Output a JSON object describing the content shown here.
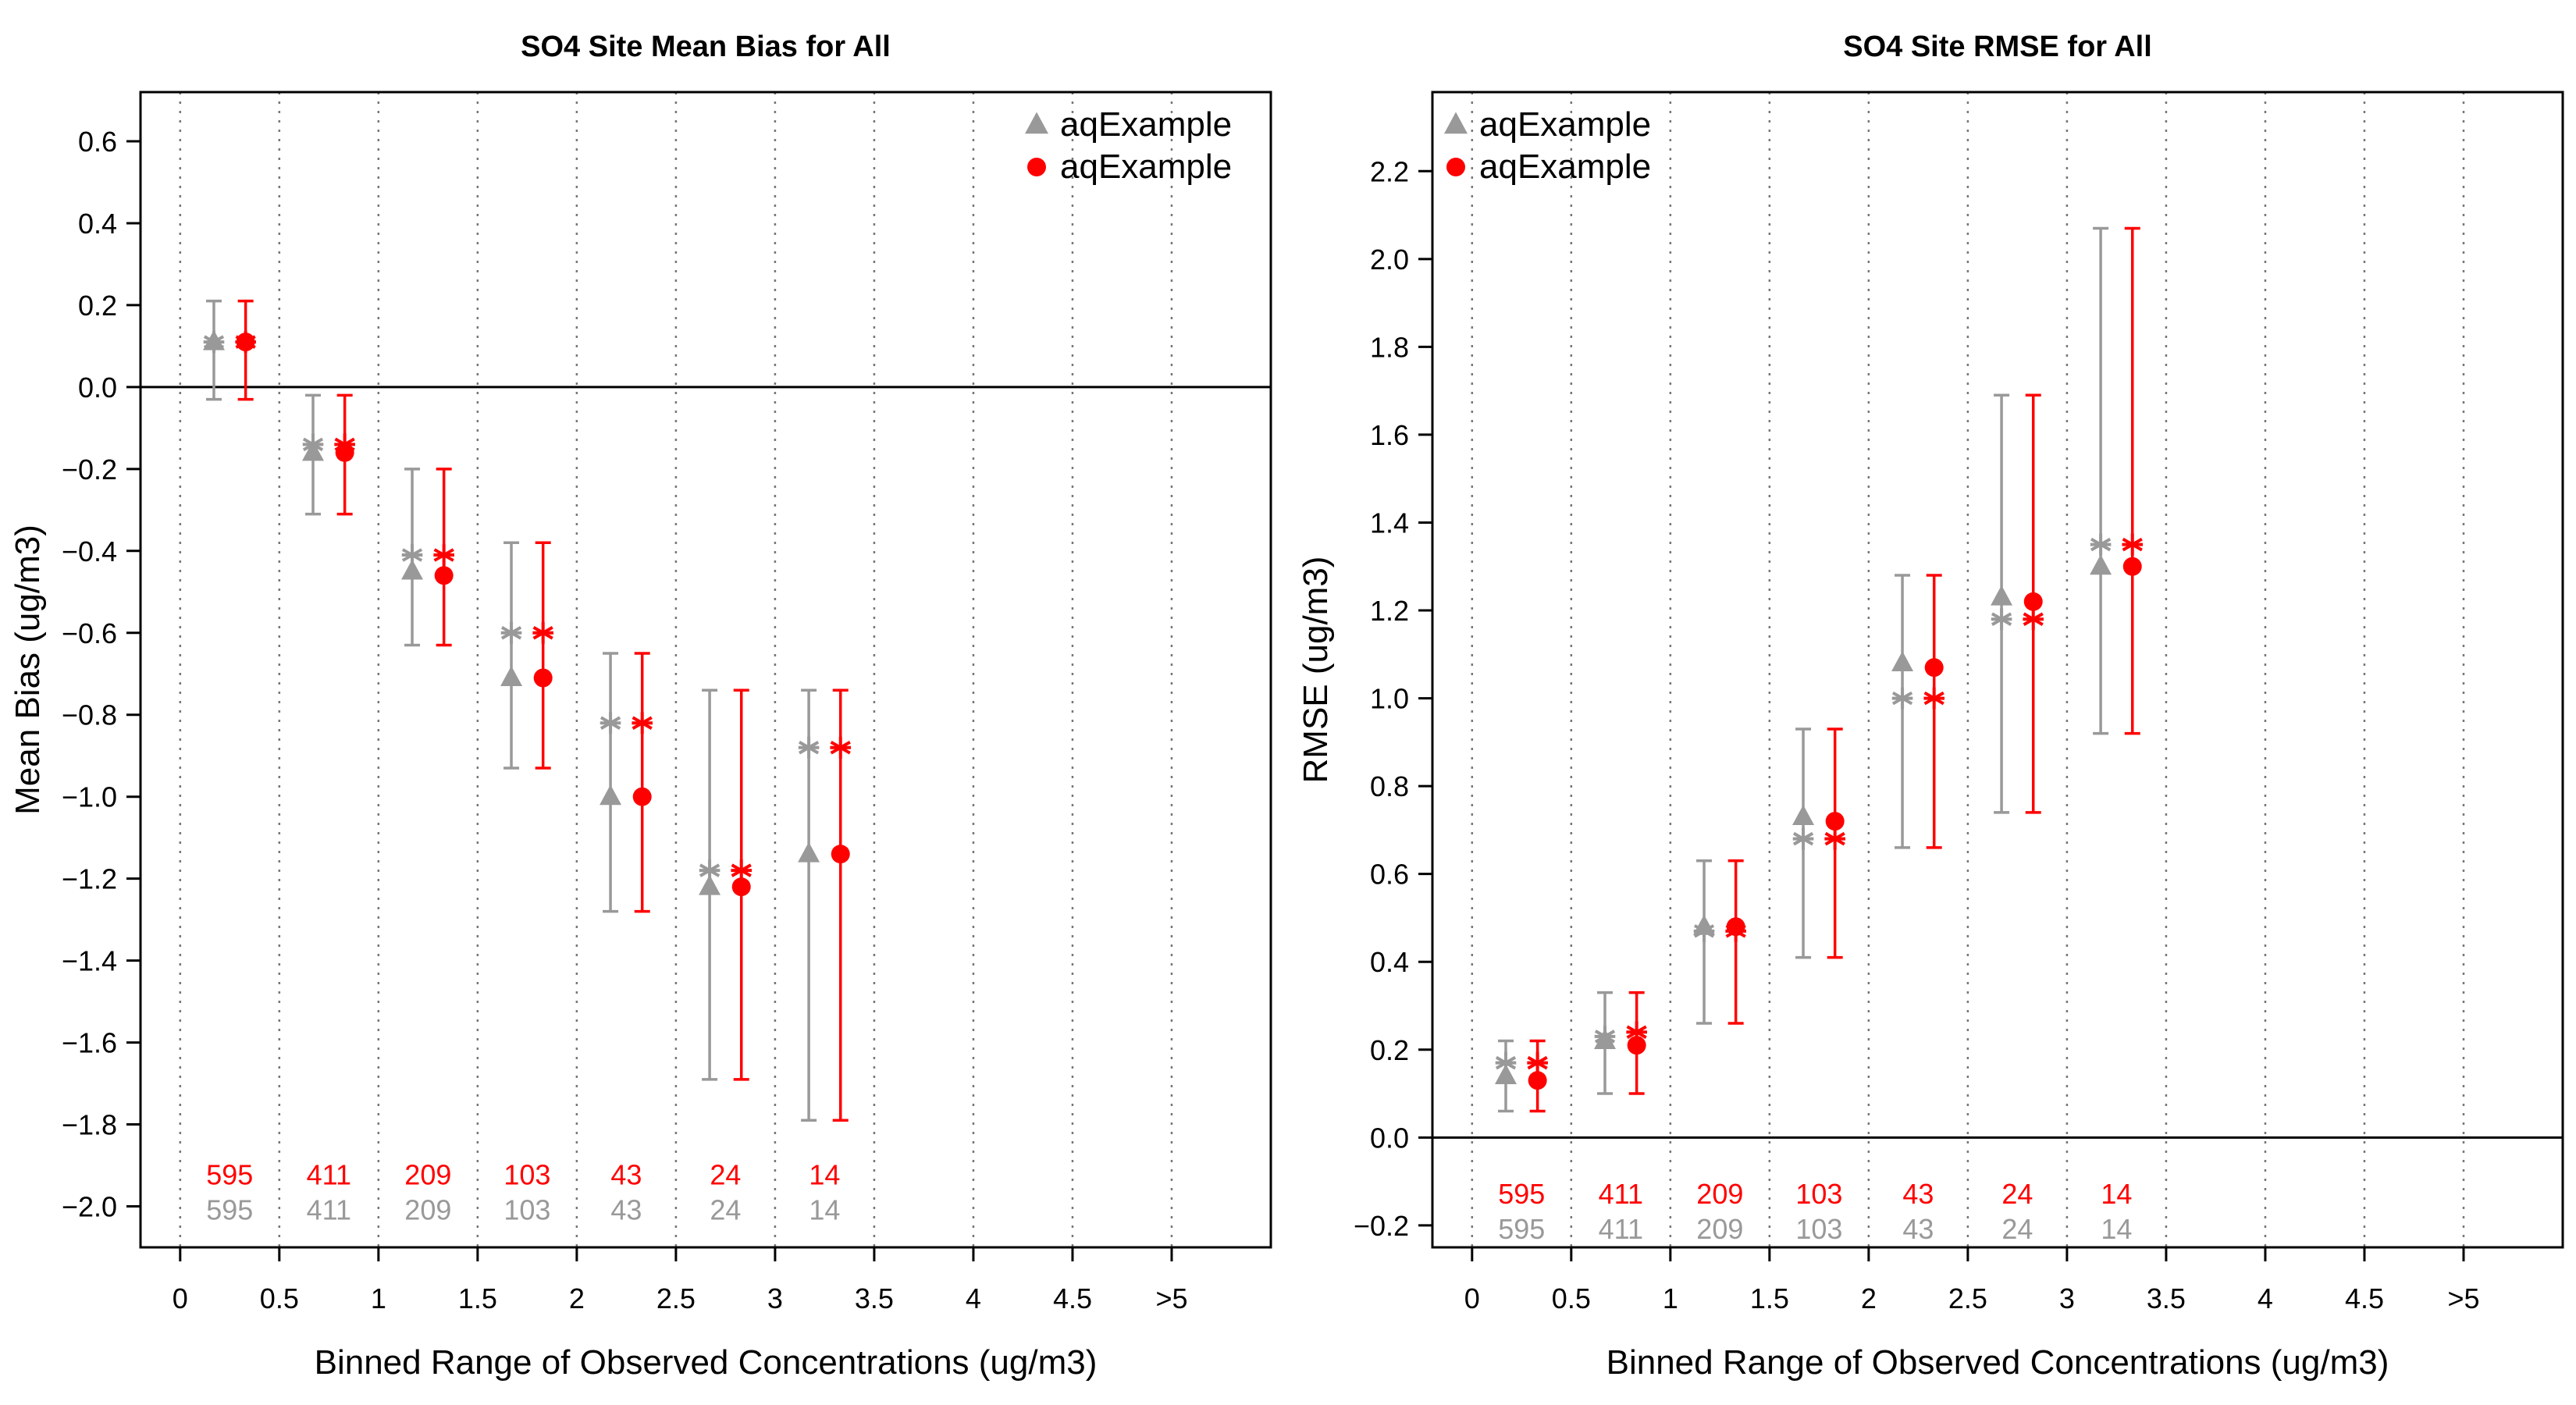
{
  "colors": {
    "modelA": "#999999",
    "modelB": "#ff0000",
    "axis": "#000000",
    "gridline": "#777777"
  },
  "chart_data": [
    {
      "type": "scatter",
      "title": "SO4 Site Mean Bias for All",
      "xlabel": "Binned Range of Observed Concentrations (ug/m3)",
      "ylabel": "Mean Bias (ug/m3)",
      "categories": [
        "0",
        "0.5",
        "1",
        "1.5",
        "2",
        "2.5",
        "3",
        "3.5",
        "4",
        "4.5",
        ">5"
      ],
      "ylim": [
        -2.1,
        0.72
      ],
      "yticks": [
        0.6,
        0.4,
        0.2,
        0.0,
        -0.2,
        -0.4,
        -0.6,
        -0.8,
        -1.0,
        -1.2,
        -1.4,
        -1.6,
        -1.8,
        -2.0
      ],
      "ytick_labels": [
        "0.6",
        "0.4",
        "0.2",
        "0.0",
        "−0.2",
        "−0.4",
        "−0.6",
        "−0.8",
        "−1.0",
        "−1.2",
        "−1.4",
        "−1.6",
        "−1.8",
        "−2.0"
      ],
      "zero_line": 0,
      "grid": "vertical dotted",
      "legend_position": "top-right",
      "legend": [
        {
          "name": "aqExample",
          "marker": "triangle",
          "color": "#999999"
        },
        {
          "name": "aqExample",
          "marker": "circle",
          "color": "#ff0000"
        }
      ],
      "bins": [
        0.25,
        0.75,
        1.25,
        1.75,
        2.25,
        2.75,
        3.25
      ],
      "series": [
        {
          "name": "aqExample",
          "color": "#999999",
          "marker": "triangle",
          "mean": [
            0.11,
            -0.16,
            -0.45,
            -0.71,
            -1.0,
            -1.22,
            -1.14
          ],
          "median": [
            0.11,
            -0.14,
            -0.41,
            -0.6,
            -0.82,
            -1.18,
            -0.88
          ],
          "lower": [
            -0.03,
            -0.31,
            -0.63,
            -0.93,
            -1.28,
            -1.69,
            -1.79
          ],
          "upper": [
            0.21,
            -0.02,
            -0.2,
            -0.38,
            -0.65,
            -0.74,
            -0.74
          ],
          "counts": [
            "595",
            "411",
            "209",
            "103",
            "43",
            "24",
            "14"
          ]
        },
        {
          "name": "aqExample",
          "color": "#ff0000",
          "marker": "circle",
          "mean": [
            0.11,
            -0.16,
            -0.46,
            -0.71,
            -1.0,
            -1.22,
            -1.14
          ],
          "median": [
            0.11,
            -0.14,
            -0.41,
            -0.6,
            -0.82,
            -1.18,
            -0.88
          ],
          "lower": [
            -0.03,
            -0.31,
            -0.63,
            -0.93,
            -1.28,
            -1.69,
            -1.79
          ],
          "upper": [
            0.21,
            -0.02,
            -0.2,
            -0.38,
            -0.65,
            -0.74,
            -0.74
          ],
          "counts": [
            "595",
            "411",
            "209",
            "103",
            "43",
            "24",
            "14"
          ]
        }
      ]
    },
    {
      "type": "scatter",
      "title": "SO4 Site RMSE for All",
      "xlabel": "Binned Range of Observed Concentrations (ug/m3)",
      "ylabel": "RMSE (ug/m3)",
      "categories": [
        "0",
        "0.5",
        "1",
        "1.5",
        "2",
        "2.5",
        "3",
        "3.5",
        "4",
        "4.5",
        ">5"
      ],
      "ylim": [
        -0.25,
        2.38
      ],
      "yticks": [
        2.2,
        2.0,
        1.8,
        1.6,
        1.4,
        1.2,
        1.0,
        0.8,
        0.6,
        0.4,
        0.2,
        0.0,
        -0.2
      ],
      "ytick_labels": [
        "2.2",
        "2.0",
        "1.8",
        "1.6",
        "1.4",
        "1.2",
        "1.0",
        "0.8",
        "0.6",
        "0.4",
        "0.2",
        "0.0",
        "−0.2"
      ],
      "zero_line": 0,
      "grid": "vertical dotted",
      "legend_position": "top-left",
      "legend": [
        {
          "name": "aqExample",
          "marker": "triangle",
          "color": "#999999"
        },
        {
          "name": "aqExample",
          "marker": "circle",
          "color": "#ff0000"
        }
      ],
      "bins": [
        0.25,
        0.75,
        1.25,
        1.75,
        2.25,
        2.75,
        3.25
      ],
      "series": [
        {
          "name": "aqExample",
          "color": "#999999",
          "marker": "triangle",
          "mean": [
            0.14,
            0.22,
            0.48,
            0.73,
            1.08,
            1.23,
            1.3
          ],
          "median": [
            0.17,
            0.23,
            0.47,
            0.68,
            1.0,
            1.18,
            1.35
          ],
          "lower": [
            0.06,
            0.1,
            0.26,
            0.41,
            0.66,
            0.74,
            0.92
          ],
          "upper": [
            0.22,
            0.33,
            0.63,
            0.93,
            1.28,
            1.69,
            2.07
          ],
          "counts": [
            "595",
            "411",
            "209",
            "103",
            "43",
            "24",
            "14"
          ]
        },
        {
          "name": "aqExample",
          "color": "#ff0000",
          "marker": "circle",
          "mean": [
            0.13,
            0.21,
            0.48,
            0.72,
            1.07,
            1.22,
            1.3
          ],
          "median": [
            0.17,
            0.24,
            0.47,
            0.68,
            1.0,
            1.18,
            1.35
          ],
          "lower": [
            0.06,
            0.1,
            0.26,
            0.41,
            0.66,
            0.74,
            0.92
          ],
          "upper": [
            0.22,
            0.33,
            0.63,
            0.93,
            1.28,
            1.69,
            2.07
          ],
          "counts": [
            "595",
            "411",
            "209",
            "103",
            "43",
            "24",
            "14"
          ]
        }
      ]
    }
  ]
}
